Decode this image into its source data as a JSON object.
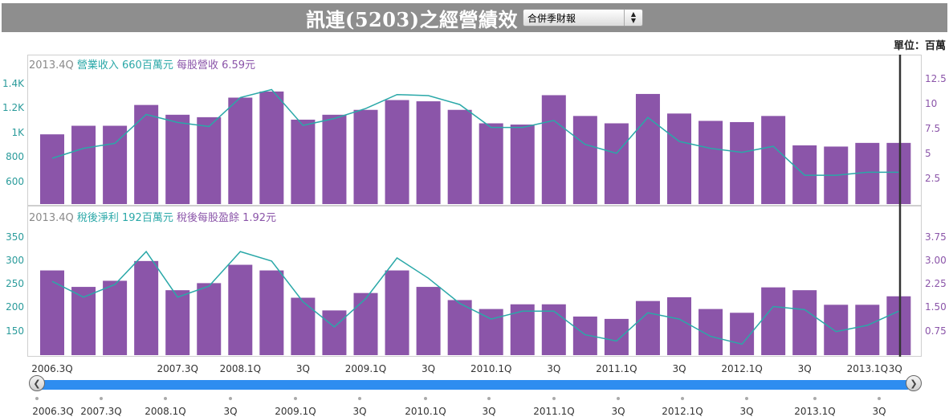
{
  "header": {
    "title": "訊連(5203)之經營績效",
    "report_select": "合併季財報"
  },
  "unit_label": "單位：百萬",
  "colors": {
    "bar": "#8b55a9",
    "line": "#2aa8a8",
    "cursor": "#333333"
  },
  "chart_data": [
    {
      "type": "bar",
      "legend": {
        "quarter": "2013.4Q",
        "series_a": "營業收入 660百萬元",
        "series_b": "每股營收 6.59元"
      },
      "left_axis_ticks": [
        "1.4K",
        "1.2K",
        "1K",
        "800",
        "600"
      ],
      "left_axis_values": [
        1400,
        1200,
        1000,
        800,
        600
      ],
      "right_axis_ticks": [
        "12.5",
        "10",
        "7.5",
        "5",
        "2.5"
      ],
      "right_axis_values": [
        12.5,
        10,
        7.5,
        5,
        2.5
      ],
      "ylim_left": [
        420,
        1510
      ],
      "ylim_right": [
        0,
        13.4
      ],
      "series": [
        {
          "name": "營業收入",
          "axis": "left",
          "kind": "bar",
          "values": [
            990,
            1060,
            1060,
            1230,
            1150,
            1130,
            1290,
            1340,
            1110,
            1150,
            1190,
            1270,
            1260,
            1190,
            1080,
            1070,
            1310,
            1140,
            1080,
            1320,
            1160,
            1100,
            1090,
            1140,
            900,
            890,
            920,
            920
          ]
        },
        {
          "name": "每股營收",
          "axis": "right",
          "kind": "line",
          "values": [
            4.6,
            5.6,
            6.1,
            9.0,
            8.2,
            7.8,
            10.7,
            11.5,
            7.9,
            8.6,
            9.6,
            11.0,
            10.9,
            10.0,
            7.7,
            7.7,
            8.4,
            6.0,
            5.1,
            8.7,
            6.3,
            5.6,
            5.2,
            5.8,
            2.9,
            2.9,
            3.2,
            3.2
          ]
        }
      ]
    },
    {
      "type": "bar",
      "legend": {
        "quarter": "2013.4Q",
        "series_a": "稅後淨利 192百萬元",
        "series_b": "稅後每股盈餘 1.92元"
      },
      "left_axis_ticks": [
        "350",
        "300",
        "250",
        "200",
        "150"
      ],
      "left_axis_values": [
        350,
        300,
        250,
        200,
        150
      ],
      "right_axis_ticks": [
        "3.75",
        "3.00",
        "2.25",
        "1.50",
        "0.75"
      ],
      "right_axis_values": [
        3.75,
        3.0,
        2.25,
        1.5,
        0.75
      ],
      "ylim_left": [
        100,
        380
      ],
      "ylim_right": [
        0,
        4.2
      ],
      "series": [
        {
          "name": "稅後淨利",
          "axis": "left",
          "kind": "bar",
          "values": [
            280,
            245,
            258,
            300,
            238,
            253,
            292,
            280,
            222,
            195,
            232,
            280,
            245,
            217,
            198,
            208,
            208,
            182,
            177,
            215,
            223,
            198,
            190,
            244,
            238,
            207,
            207,
            225
          ]
        },
        {
          "name": "稅後每股盈餘",
          "axis": "right",
          "kind": "line",
          "values": [
            2.35,
            1.85,
            2.25,
            3.3,
            1.85,
            2.2,
            3.3,
            3.0,
            1.7,
            0.9,
            1.8,
            3.1,
            2.45,
            1.65,
            1.15,
            1.4,
            1.4,
            0.65,
            0.45,
            1.35,
            1.15,
            0.6,
            0.35,
            1.55,
            1.45,
            0.75,
            0.95,
            1.4
          ]
        }
      ]
    }
  ],
  "x_axis": {
    "labels": [
      {
        "index": 0,
        "text": "2006.3Q"
      },
      {
        "index": 4,
        "text": "2007.3Q"
      },
      {
        "index": 6,
        "text": "2008.1Q"
      },
      {
        "index": 8,
        "text": "3Q"
      },
      {
        "index": 10,
        "text": "2009.1Q"
      },
      {
        "index": 12,
        "text": "3Q"
      },
      {
        "index": 14,
        "text": "2010.1Q"
      },
      {
        "index": 16,
        "text": "3Q"
      },
      {
        "index": 18,
        "text": "2011.1Q"
      },
      {
        "index": 20,
        "text": "3Q"
      },
      {
        "index": 22,
        "text": "2012.1Q"
      },
      {
        "index": 24,
        "text": "3Q"
      },
      {
        "index": 26,
        "text": "2013.1Q"
      },
      {
        "index": 28,
        "text": "3Q"
      }
    ]
  },
  "navigator": {
    "labels": [
      "2006.3Q",
      "2007.3Q",
      "2008.1Q",
      "3Q",
      "2009.1Q",
      "3Q",
      "2010.1Q",
      "3Q",
      "2011.1Q",
      "3Q",
      "2012.1Q",
      "3Q",
      "2013.1Q",
      "3Q"
    ]
  }
}
